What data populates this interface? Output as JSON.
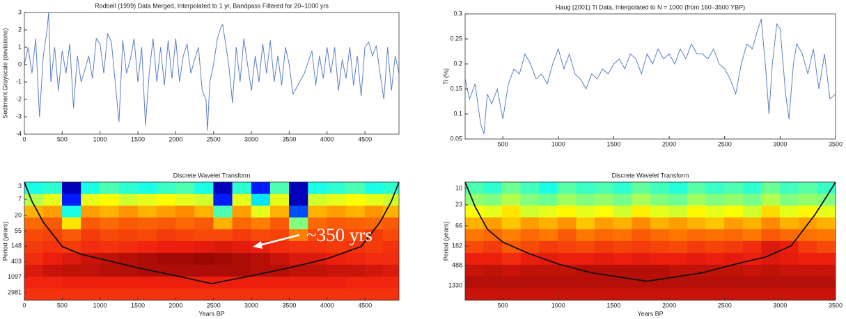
{
  "chart_data": [
    {
      "type": "line",
      "title": "Rodbell (1999) Data Merged, Interpolated to 1 yr, Bandpass Filtered for 20–1000 yrs",
      "ylabel": "Sediment Grayscale (deviations)",
      "color": "#5b7fc7",
      "xlim": [
        0,
        4950
      ],
      "xticks": [
        0,
        500,
        1000,
        1500,
        2000,
        2500,
        3000,
        3500,
        4000,
        4500
      ],
      "ylim": [
        -4,
        3
      ],
      "yticks": [
        -4,
        -3,
        -2,
        -1,
        0,
        1,
        2,
        3
      ],
      "x": [
        0,
        50,
        100,
        150,
        200,
        250,
        300,
        320,
        350,
        400,
        450,
        500,
        550,
        600,
        650,
        700,
        750,
        800,
        850,
        900,
        950,
        1000,
        1050,
        1100,
        1150,
        1200,
        1250,
        1300,
        1350,
        1400,
        1450,
        1500,
        1550,
        1600,
        1650,
        1700,
        1750,
        1800,
        1850,
        1900,
        1950,
        2000,
        2050,
        2100,
        2150,
        2200,
        2250,
        2300,
        2350,
        2400,
        2420,
        2450,
        2500,
        2550,
        2600,
        2620,
        2700,
        2750,
        2800,
        2850,
        2900,
        2950,
        3000,
        3050,
        3100,
        3150,
        3200,
        3250,
        3300,
        3350,
        3400,
        3450,
        3500,
        3550,
        3700,
        3800,
        3850,
        3900,
        3950,
        4000,
        4050,
        4100,
        4150,
        4200,
        4250,
        4300,
        4350,
        4400,
        4450,
        4500,
        4550,
        4600,
        4650,
        4700,
        4750,
        4800,
        4850,
        4900,
        4950
      ],
      "values": [
        0,
        1,
        -0.5,
        1.5,
        -3,
        0.5,
        2,
        3,
        -1,
        1,
        -1.5,
        0.8,
        -0.5,
        1.2,
        -2.5,
        0.5,
        -1,
        -0.3,
        0.5,
        -0.8,
        1.5,
        1.2,
        -0.5,
        1.8,
        1.3,
        -1,
        -3.3,
        1.4,
        -0.5,
        0.3,
        1.5,
        -1,
        1,
        -3.5,
        -0.5,
        1.5,
        -1,
        1,
        -1.2,
        1.4,
        -0.8,
        1.5,
        -1,
        0.5,
        1.2,
        -0.5,
        0.3,
        1,
        -1.5,
        -2,
        -3.8,
        -1,
        0,
        1.5,
        2.2,
        2.3,
        0,
        -2.2,
        1,
        -1,
        1.5,
        0,
        -1.5,
        0.5,
        -1,
        1.2,
        -0.5,
        1.4,
        -1,
        0.5,
        -1.2,
        1,
        0,
        -1.7,
        -0.5,
        0.8,
        -1.2,
        0.5,
        -0.8,
        1,
        -0.5,
        1,
        -1.5,
        0.3,
        -0.8,
        1,
        -1.2,
        0.5,
        -1.8,
        1,
        1.3,
        0.5,
        1.1,
        -0.5,
        -2,
        1,
        -1.5,
        0.5,
        -0.5
      ]
    },
    {
      "type": "line",
      "title": "Haug (2001) Ti Data, Interpolated to N = 1000 (from 160–3500 YBP)",
      "ylabel": "Ti (%)",
      "color": "#5b7fc7",
      "xlim": [
        160,
        3500
      ],
      "xticks": [
        500,
        1000,
        1500,
        2000,
        2500,
        3000,
        3500
      ],
      "ylim": [
        0.05,
        0.3
      ],
      "yticks": [
        0.05,
        0.1,
        0.15,
        0.2,
        0.25,
        0.3
      ],
      "x": [
        160,
        200,
        250,
        300,
        330,
        360,
        400,
        450,
        500,
        550,
        600,
        650,
        700,
        750,
        800,
        850,
        900,
        950,
        1000,
        1050,
        1100,
        1150,
        1200,
        1250,
        1300,
        1350,
        1400,
        1450,
        1500,
        1550,
        1600,
        1650,
        1700,
        1750,
        1800,
        1850,
        1900,
        1950,
        2000,
        2050,
        2100,
        2150,
        2200,
        2250,
        2300,
        2350,
        2400,
        2450,
        2500,
        2550,
        2600,
        2650,
        2700,
        2750,
        2800,
        2830,
        2870,
        2900,
        2930,
        2970,
        3000,
        3050,
        3080,
        3120,
        3150,
        3200,
        3250,
        3300,
        3350,
        3400,
        3450,
        3500
      ],
      "values": [
        0.17,
        0.13,
        0.16,
        0.08,
        0.06,
        0.14,
        0.12,
        0.15,
        0.09,
        0.16,
        0.19,
        0.18,
        0.22,
        0.2,
        0.17,
        0.18,
        0.16,
        0.2,
        0.23,
        0.19,
        0.22,
        0.18,
        0.17,
        0.15,
        0.18,
        0.17,
        0.19,
        0.18,
        0.2,
        0.21,
        0.19,
        0.22,
        0.21,
        0.18,
        0.22,
        0.2,
        0.23,
        0.21,
        0.22,
        0.2,
        0.23,
        0.21,
        0.24,
        0.22,
        0.22,
        0.21,
        0.23,
        0.2,
        0.19,
        0.17,
        0.14,
        0.2,
        0.24,
        0.23,
        0.27,
        0.29,
        0.19,
        0.1,
        0.2,
        0.28,
        0.27,
        0.14,
        0.09,
        0.2,
        0.24,
        0.22,
        0.18,
        0.23,
        0.15,
        0.22,
        0.13,
        0.14
      ]
    },
    {
      "type": "heatmap",
      "title": "Discrete Wavelet Transform",
      "xlabel": "Years BP",
      "ylabel": "Period (years)",
      "annotation": "~350 yrs",
      "yscale": "log",
      "y_inverted": true,
      "colormap": [
        "#00008f",
        "#0000ff",
        "#0080ff",
        "#00ffff",
        "#80ff80",
        "#ffff00",
        "#ff8000",
        "#f02010",
        "#800000"
      ],
      "xlim": [
        0,
        4950
      ],
      "xticks": [
        0,
        500,
        1000,
        1500,
        2000,
        2500,
        3000,
        3500,
        4000,
        4500
      ],
      "ylim": [
        2.3,
        4900
      ],
      "yticks": [
        3,
        7,
        20,
        55,
        148,
        403,
        1097,
        2981
      ],
      "x": [
        125,
        375,
        625,
        875,
        1125,
        1375,
        1625,
        1875,
        2125,
        2375,
        2625,
        2875,
        3125,
        3375,
        3625,
        3875,
        4125,
        4375,
        4625,
        4850
      ],
      "y": [
        3.4,
        7.3,
        15.7,
        34,
        73,
        157,
        338,
        728,
        1570,
        3380
      ],
      "z": [
        [
          0.4,
          0.42,
          0.05,
          0.4,
          0.45,
          0.42,
          0.4,
          0.43,
          0.45,
          0.4,
          0.05,
          0.42,
          0.15,
          0.45,
          0.05,
          0.4,
          0.42,
          0.45,
          0.4,
          0.42
        ],
        [
          0.55,
          0.6,
          0.15,
          0.6,
          0.62,
          0.58,
          0.6,
          0.62,
          0.6,
          0.58,
          0.15,
          0.6,
          0.35,
          0.6,
          0.05,
          0.58,
          0.6,
          0.62,
          0.6,
          0.58
        ],
        [
          0.7,
          0.72,
          0.4,
          0.72,
          0.7,
          0.73,
          0.7,
          0.72,
          0.74,
          0.7,
          0.45,
          0.72,
          0.6,
          0.7,
          0.2,
          0.7,
          0.72,
          0.7,
          0.73,
          0.7
        ],
        [
          0.78,
          0.8,
          0.65,
          0.8,
          0.78,
          0.8,
          0.79,
          0.8,
          0.78,
          0.8,
          0.7,
          0.78,
          0.75,
          0.8,
          0.5,
          0.78,
          0.8,
          0.79,
          0.78,
          0.8
        ],
        [
          0.82,
          0.83,
          0.8,
          0.84,
          0.82,
          0.83,
          0.82,
          0.84,
          0.83,
          0.82,
          0.82,
          0.84,
          0.82,
          0.83,
          0.75,
          0.82,
          0.83,
          0.82,
          0.84,
          0.82
        ],
        [
          0.84,
          0.85,
          0.84,
          0.86,
          0.85,
          0.86,
          0.87,
          0.88,
          0.88,
          0.89,
          0.9,
          0.89,
          0.88,
          0.86,
          0.85,
          0.85,
          0.84,
          0.85,
          0.84,
          0.85
        ],
        [
          0.86,
          0.88,
          0.9,
          0.92,
          0.93,
          0.94,
          0.95,
          0.96,
          0.96,
          0.97,
          0.96,
          0.95,
          0.94,
          0.92,
          0.9,
          0.9,
          0.88,
          0.87,
          0.86,
          0.86
        ],
        [
          0.9,
          0.92,
          0.93,
          0.93,
          0.94,
          0.94,
          0.95,
          0.95,
          0.95,
          0.95,
          0.95,
          0.95,
          0.94,
          0.94,
          0.93,
          0.93,
          0.92,
          0.92,
          0.91,
          0.9
        ],
        [
          0.87,
          0.87,
          0.88,
          0.88,
          0.88,
          0.88,
          0.88,
          0.88,
          0.88,
          0.88,
          0.88,
          0.88,
          0.88,
          0.88,
          0.88,
          0.88,
          0.88,
          0.87,
          0.87,
          0.87
        ],
        [
          0.85,
          0.85,
          0.85,
          0.85,
          0.85,
          0.85,
          0.85,
          0.85,
          0.85,
          0.85,
          0.85,
          0.85,
          0.85,
          0.85,
          0.85,
          0.85,
          0.85,
          0.85,
          0.85,
          0.85
        ]
      ],
      "cone": {
        "x": [
          0,
          100,
          250,
          500,
          750,
          1000,
          1500,
          2000,
          2475,
          3000,
          3500,
          4000,
          4450,
          4700,
          4850,
          4950
        ],
        "y": [
          2.3,
          8,
          31,
          150,
          250,
          330,
          600,
          1000,
          1670,
          1000,
          600,
          330,
          150,
          31,
          8,
          2.3
        ]
      }
    },
    {
      "type": "heatmap",
      "title": "Discrete Wavelet Transform",
      "xlabel": "Years BP",
      "ylabel": "Period (years)",
      "yscale": "log",
      "y_inverted": true,
      "colormap": [
        "#00008f",
        "#0000ff",
        "#0080ff",
        "#00ffff",
        "#80ff80",
        "#ffff00",
        "#ff8000",
        "#f02010",
        "#800000"
      ],
      "xlim": [
        160,
        3500
      ],
      "xticks": [
        500,
        1000,
        1500,
        2000,
        2500,
        3000,
        3500
      ],
      "ylim": [
        7.3,
        2780
      ],
      "yticks": [
        10,
        23,
        66,
        182,
        488,
        1330
      ],
      "x": [
        244,
        411,
        578,
        745,
        912,
        1079,
        1246,
        1413,
        1580,
        1747,
        1914,
        2081,
        2248,
        2415,
        2582,
        2749,
        2916,
        3083,
        3250,
        3417
      ],
      "y": [
        9.8,
        17.8,
        32.3,
        58.6,
        106,
        193,
        350,
        634,
        1150,
        2090
      ],
      "z": [
        [
          0.45,
          0.42,
          0.48,
          0.44,
          0.4,
          0.46,
          0.43,
          0.45,
          0.42,
          0.47,
          0.44,
          0.41,
          0.46,
          0.43,
          0.45,
          0.42,
          0.48,
          0.44,
          0.46,
          0.43
        ],
        [
          0.52,
          0.5,
          0.55,
          0.5,
          0.48,
          0.53,
          0.5,
          0.52,
          0.49,
          0.54,
          0.5,
          0.48,
          0.53,
          0.5,
          0.52,
          0.49,
          0.55,
          0.5,
          0.52,
          0.5
        ],
        [
          0.62,
          0.6,
          0.65,
          0.58,
          0.6,
          0.63,
          0.6,
          0.62,
          0.58,
          0.64,
          0.6,
          0.58,
          0.63,
          0.6,
          0.62,
          0.58,
          0.66,
          0.6,
          0.63,
          0.6
        ],
        [
          0.7,
          0.72,
          0.68,
          0.72,
          0.7,
          0.73,
          0.68,
          0.72,
          0.7,
          0.74,
          0.7,
          0.72,
          0.7,
          0.68,
          0.72,
          0.7,
          0.74,
          0.7,
          0.72,
          0.7
        ],
        [
          0.76,
          0.78,
          0.75,
          0.78,
          0.76,
          0.8,
          0.76,
          0.78,
          0.77,
          0.8,
          0.78,
          0.76,
          0.78,
          0.77,
          0.78,
          0.76,
          0.8,
          0.78,
          0.77,
          0.76
        ],
        [
          0.82,
          0.84,
          0.8,
          0.82,
          0.84,
          0.83,
          0.82,
          0.84,
          0.83,
          0.84,
          0.83,
          0.82,
          0.84,
          0.83,
          0.84,
          0.86,
          0.9,
          0.88,
          0.84,
          0.82
        ],
        [
          0.88,
          0.88,
          0.86,
          0.88,
          0.89,
          0.88,
          0.88,
          0.89,
          0.88,
          0.89,
          0.88,
          0.88,
          0.89,
          0.88,
          0.89,
          0.88,
          0.9,
          0.89,
          0.88,
          0.88
        ],
        [
          0.92,
          0.93,
          0.92,
          0.93,
          0.93,
          0.93,
          0.94,
          0.94,
          0.94,
          0.94,
          0.94,
          0.93,
          0.93,
          0.93,
          0.93,
          0.92,
          0.93,
          0.92,
          0.92,
          0.92
        ],
        [
          0.94,
          0.94,
          0.94,
          0.94,
          0.94,
          0.94,
          0.94,
          0.94,
          0.94,
          0.94,
          0.94,
          0.94,
          0.94,
          0.94,
          0.94,
          0.94,
          0.94,
          0.94,
          0.94,
          0.94
        ],
        [
          0.92,
          0.92,
          0.92,
          0.92,
          0.92,
          0.92,
          0.92,
          0.92,
          0.92,
          0.92,
          0.92,
          0.92,
          0.92,
          0.92,
          0.92,
          0.92,
          0.92,
          0.92,
          0.92,
          0.92
        ]
      ],
      "cone": {
        "x": [
          160,
          250,
          360,
          500,
          737,
          1000,
          1300,
          1800,
          2300,
          2600,
          2870,
          3100,
          3310,
          3420,
          3500
        ],
        "y": [
          7.3,
          25,
          78,
          150,
          266,
          450,
          700,
          1070,
          700,
          450,
          316,
          180,
          39,
          15,
          7.3
        ]
      }
    }
  ]
}
